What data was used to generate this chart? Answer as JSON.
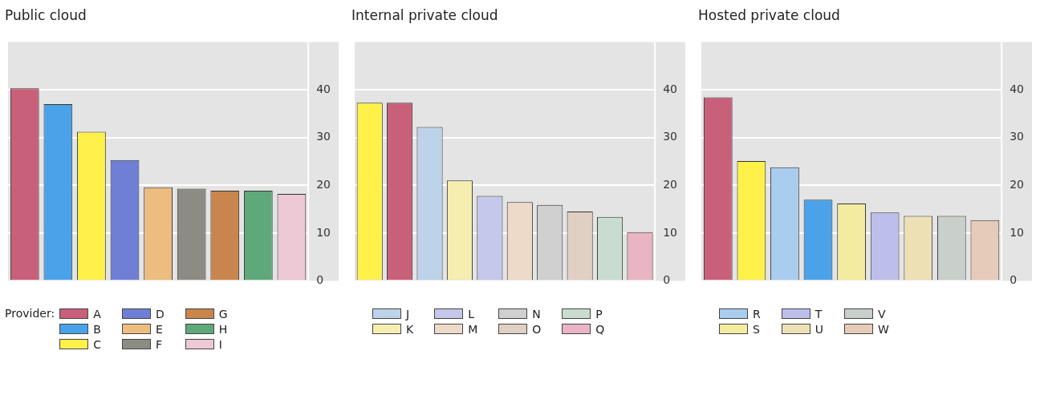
{
  "chart_data": [
    {
      "type": "bar",
      "title": "Public cloud",
      "legend_title": "Provider:",
      "legend": "bottom",
      "grid": "y",
      "ylim": [
        0,
        50
      ],
      "yticks": [
        0,
        10,
        20,
        30,
        40
      ],
      "categories": [
        null,
        null,
        null,
        null,
        null,
        null,
        null,
        null,
        null
      ],
      "series": [
        {
          "name": "A",
          "color": "#c9607a",
          "values": [
            40.3,
            null,
            null,
            null,
            null,
            null,
            null,
            null,
            null
          ]
        },
        {
          "name": "B",
          "color": "#4aa3e8",
          "values": [
            null,
            37.0,
            null,
            null,
            null,
            null,
            null,
            null,
            null
          ]
        },
        {
          "name": "C",
          "color": "#fff04a",
          "values": [
            null,
            null,
            31.2,
            null,
            null,
            null,
            null,
            null,
            null
          ]
        },
        {
          "name": "D",
          "color": "#6f7fd6",
          "values": [
            null,
            null,
            null,
            25.3,
            null,
            null,
            null,
            null,
            null
          ]
        },
        {
          "name": "E",
          "color": "#edbd7f",
          "values": [
            null,
            null,
            null,
            null,
            19.6,
            null,
            null,
            null,
            null
          ]
        },
        {
          "name": "F",
          "color": "#8c8c84",
          "values": [
            null,
            null,
            null,
            null,
            null,
            19.3,
            null,
            null,
            null
          ]
        },
        {
          "name": "G",
          "color": "#c9854d",
          "values": [
            null,
            null,
            null,
            null,
            null,
            null,
            18.9,
            null,
            null
          ]
        },
        {
          "name": "H",
          "color": "#5fa87a",
          "values": [
            null,
            null,
            null,
            null,
            null,
            null,
            null,
            18.9,
            null
          ]
        },
        {
          "name": "I",
          "color": "#ecc9d4",
          "values": [
            null,
            null,
            null,
            null,
            null,
            null,
            null,
            null,
            18.2
          ]
        }
      ]
    },
    {
      "type": "bar",
      "title": "Internal private cloud",
      "legend": "bottom",
      "grid": "y",
      "ylim": [
        0,
        50
      ],
      "yticks": [
        0,
        10,
        20,
        30,
        40
      ],
      "categories": [
        null,
        null,
        null,
        null,
        null,
        null,
        null,
        null,
        null,
        null
      ],
      "series": [
        {
          "color": "#fff04a",
          "values": [
            37.3,
            null,
            null,
            null,
            null,
            null,
            null,
            null,
            null,
            null
          ]
        },
        {
          "color": "#c9607a",
          "values": [
            null,
            37.3,
            null,
            null,
            null,
            null,
            null,
            null,
            null,
            null
          ]
        },
        {
          "name": "J",
          "color": "#bcd3ea",
          "values": [
            null,
            null,
            32.2,
            null,
            null,
            null,
            null,
            null,
            null,
            null
          ]
        },
        {
          "name": "K",
          "color": "#f5eeb0",
          "values": [
            null,
            null,
            null,
            21.0,
            null,
            null,
            null,
            null,
            null,
            null
          ]
        },
        {
          "name": "L",
          "color": "#c5c8ea",
          "values": [
            null,
            null,
            null,
            null,
            17.8,
            null,
            null,
            null,
            null,
            null
          ]
        },
        {
          "name": "M",
          "color": "#eedac8",
          "values": [
            null,
            null,
            null,
            null,
            null,
            16.5,
            null,
            null,
            null,
            null
          ]
        },
        {
          "name": "N",
          "color": "#d0d0d0",
          "values": [
            null,
            null,
            null,
            null,
            null,
            null,
            15.9,
            null,
            null,
            null
          ]
        },
        {
          "name": "O",
          "color": "#e0cfc3",
          "values": [
            null,
            null,
            null,
            null,
            null,
            null,
            null,
            14.5,
            null,
            null
          ]
        },
        {
          "name": "P",
          "color": "#c8ddd0",
          "values": [
            null,
            null,
            null,
            null,
            null,
            null,
            null,
            null,
            13.4,
            null
          ]
        },
        {
          "name": "Q",
          "color": "#eab4c4",
          "values": [
            null,
            null,
            null,
            null,
            null,
            null,
            null,
            null,
            null,
            10.2
          ]
        }
      ]
    },
    {
      "type": "bar",
      "title": "Hosted private cloud",
      "legend": "bottom",
      "grid": "y",
      "ylim": [
        0,
        50
      ],
      "yticks": [
        0,
        10,
        20,
        30,
        40
      ],
      "categories": [
        null,
        null,
        null,
        null,
        null,
        null,
        null,
        null,
        null
      ],
      "series": [
        {
          "color": "#c9607a",
          "values": [
            38.4,
            null,
            null,
            null,
            null,
            null,
            null,
            null,
            null
          ]
        },
        {
          "color": "#fff04a",
          "values": [
            null,
            25.1,
            null,
            null,
            null,
            null,
            null,
            null,
            null
          ]
        },
        {
          "name": "R",
          "color": "#a9cdee",
          "values": [
            null,
            null,
            23.8,
            null,
            null,
            null,
            null,
            null,
            null
          ]
        },
        {
          "color": "#4aa3e8",
          "values": [
            null,
            null,
            null,
            17.0,
            null,
            null,
            null,
            null,
            null
          ]
        },
        {
          "name": "S",
          "color": "#f3eca0",
          "values": [
            null,
            null,
            null,
            null,
            16.2,
            null,
            null,
            null,
            null
          ]
        },
        {
          "name": "T",
          "color": "#bdbfea",
          "values": [
            null,
            null,
            null,
            null,
            null,
            14.3,
            null,
            null,
            null
          ]
        },
        {
          "name": "U",
          "color": "#eee0b5",
          "values": [
            null,
            null,
            null,
            null,
            null,
            null,
            13.6,
            null,
            null
          ]
        },
        {
          "name": "V",
          "color": "#c9cfcb",
          "values": [
            null,
            null,
            null,
            null,
            null,
            null,
            null,
            13.6,
            null
          ]
        },
        {
          "name": "W",
          "color": "#e6cbb8",
          "values": [
            null,
            null,
            null,
            null,
            null,
            null,
            null,
            null,
            12.7
          ]
        }
      ]
    }
  ]
}
